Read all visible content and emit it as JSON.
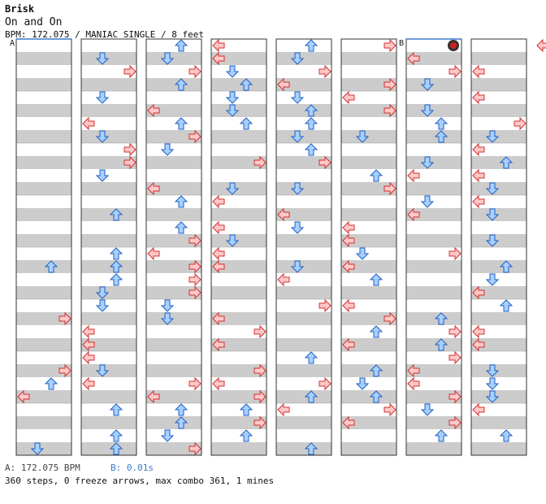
{
  "header": {
    "title": "Brisk",
    "artist": "On and On",
    "info": "BPM: 172.075 / MANIAC SINGLE / 8 feet"
  },
  "markers": {
    "a": "A",
    "b": "B"
  },
  "footer": {
    "bpm_a": "A: 172.075 BPM",
    "bpm_b": "B: 0.01s",
    "stats": "360 steps, 0 freeze arrows, max combo 361, 1 mines"
  },
  "colors": {
    "stripe": "#cccccc",
    "arrow_red_fill": "#ffc8c8",
    "arrow_red_stroke": "#d03030",
    "arrow_blue_fill": "#a8d0ff",
    "arrow_blue_stroke": "#2060c0",
    "mine": "#cc2020",
    "bpm_b": "#3a78c8"
  }
}
